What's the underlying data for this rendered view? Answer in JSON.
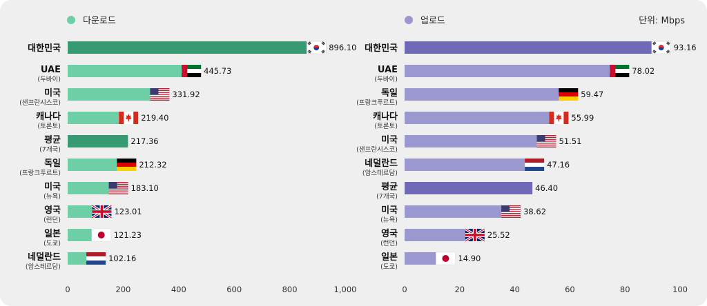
{
  "unit_label": "단위: Mbps",
  "chart_data": [
    {
      "type": "bar",
      "orientation": "horizontal",
      "legend": "다운로드",
      "color": "#6ecfa6",
      "highlight_color": "#389a72",
      "xlim": [
        0,
        1000
      ],
      "ticks": [
        "0",
        "200",
        "400",
        "600",
        "800",
        "1,000"
      ],
      "tick_values": [
        0,
        200,
        400,
        600,
        800,
        1000
      ],
      "bars": [
        {
          "label": "대한민국",
          "sub": "",
          "value": 896.1,
          "value_text": "896.10",
          "flag": "kr-flag-icon",
          "highlight": true
        },
        {
          "label": "UAE",
          "sub": "(두바이)",
          "value": 445.73,
          "value_text": "445.73",
          "flag": "ae-flag-icon",
          "highlight": false
        },
        {
          "label": "미국",
          "sub": "(샌프란시스코)",
          "value": 331.92,
          "value_text": "331.92",
          "flag": "us-flag-icon",
          "highlight": false
        },
        {
          "label": "캐나다",
          "sub": "(토론토)",
          "value": 219.4,
          "value_text": "219.40",
          "flag": "ca-flag-icon",
          "highlight": false
        },
        {
          "label": "평균",
          "sub": "(7개국)",
          "value": 217.36,
          "value_text": "217.36",
          "flag": "",
          "highlight": true
        },
        {
          "label": "독일",
          "sub": "(프랑크푸르트)",
          "value": 212.32,
          "value_text": "212.32",
          "flag": "de-flag-icon",
          "highlight": false
        },
        {
          "label": "미국",
          "sub": "(뉴욕)",
          "value": 183.1,
          "value_text": "183.10",
          "flag": "us-flag-icon",
          "highlight": false
        },
        {
          "label": "영국",
          "sub": "(런던)",
          "value": 123.01,
          "value_text": "123.01",
          "flag": "uk-flag-icon",
          "highlight": false
        },
        {
          "label": "일본",
          "sub": "(도쿄)",
          "value": 121.23,
          "value_text": "121.23",
          "flag": "jp-flag-icon",
          "highlight": false
        },
        {
          "label": "네덜란드",
          "sub": "(암스테르담)",
          "value": 102.16,
          "value_text": "102.16",
          "flag": "nl-flag-icon",
          "highlight": false
        }
      ]
    },
    {
      "type": "bar",
      "orientation": "horizontal",
      "legend": "업로드",
      "color": "#9b97cf",
      "highlight_color": "#6f69b8",
      "xlim": [
        0,
        100
      ],
      "ticks": [
        "0",
        "20",
        "40",
        "60",
        "80",
        "100"
      ],
      "tick_values": [
        0,
        20,
        40,
        60,
        80,
        100
      ],
      "bars": [
        {
          "label": "대한민국",
          "sub": "",
          "value": 93.16,
          "value_text": "93.16",
          "flag": "kr-flag-icon",
          "highlight": true
        },
        {
          "label": "UAE",
          "sub": "(두바이)",
          "value": 78.02,
          "value_text": "78.02",
          "flag": "ae-flag-icon",
          "highlight": false
        },
        {
          "label": "독일",
          "sub": "(프랑크푸르트)",
          "value": 59.47,
          "value_text": "59.47",
          "flag": "de-flag-icon",
          "highlight": false
        },
        {
          "label": "캐나다",
          "sub": "(토론토)",
          "value": 55.99,
          "value_text": "55.99",
          "flag": "ca-flag-icon",
          "highlight": false
        },
        {
          "label": "미국",
          "sub": "(샌프란시스코)",
          "value": 51.51,
          "value_text": "51.51",
          "flag": "us-flag-icon",
          "highlight": false
        },
        {
          "label": "네덜란드",
          "sub": "(암스테르담)",
          "value": 47.16,
          "value_text": "47.16",
          "flag": "nl-flag-icon",
          "highlight": false
        },
        {
          "label": "평균",
          "sub": "(7개국)",
          "value": 46.4,
          "value_text": "46.40",
          "flag": "",
          "highlight": true
        },
        {
          "label": "미국",
          "sub": "(뉴욕)",
          "value": 38.62,
          "value_text": "38.62",
          "flag": "us-flag-icon",
          "highlight": false
        },
        {
          "label": "영국",
          "sub": "(런던)",
          "value": 25.52,
          "value_text": "25.52",
          "flag": "uk-flag-icon",
          "highlight": false
        },
        {
          "label": "일본",
          "sub": "(도쿄)",
          "value": 14.9,
          "value_text": "14.90",
          "flag": "jp-flag-icon",
          "highlight": false
        }
      ]
    }
  ]
}
